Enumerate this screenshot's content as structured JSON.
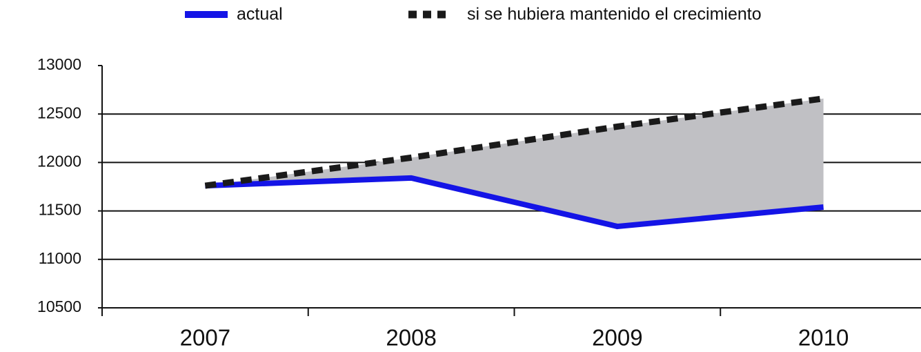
{
  "chart_data": {
    "type": "line",
    "categories": [
      "2007",
      "2008",
      "2009",
      "2010"
    ],
    "series": [
      {
        "name": "actual",
        "color": "#1414e6",
        "dash": false,
        "values": [
          11760,
          11840,
          11340,
          11540
        ]
      },
      {
        "name": "si se hubiera mantenido el crecimiento",
        "color": "#1a1a1a",
        "dash": true,
        "values": [
          11760,
          12050,
          12370,
          12660
        ]
      }
    ],
    "fill_between_color": "#c0c0c4",
    "ylim": [
      10500,
      13000
    ],
    "yticks": [
      10500,
      11000,
      11500,
      12000,
      12500,
      13000
    ],
    "grid": true,
    "legend": "top"
  }
}
